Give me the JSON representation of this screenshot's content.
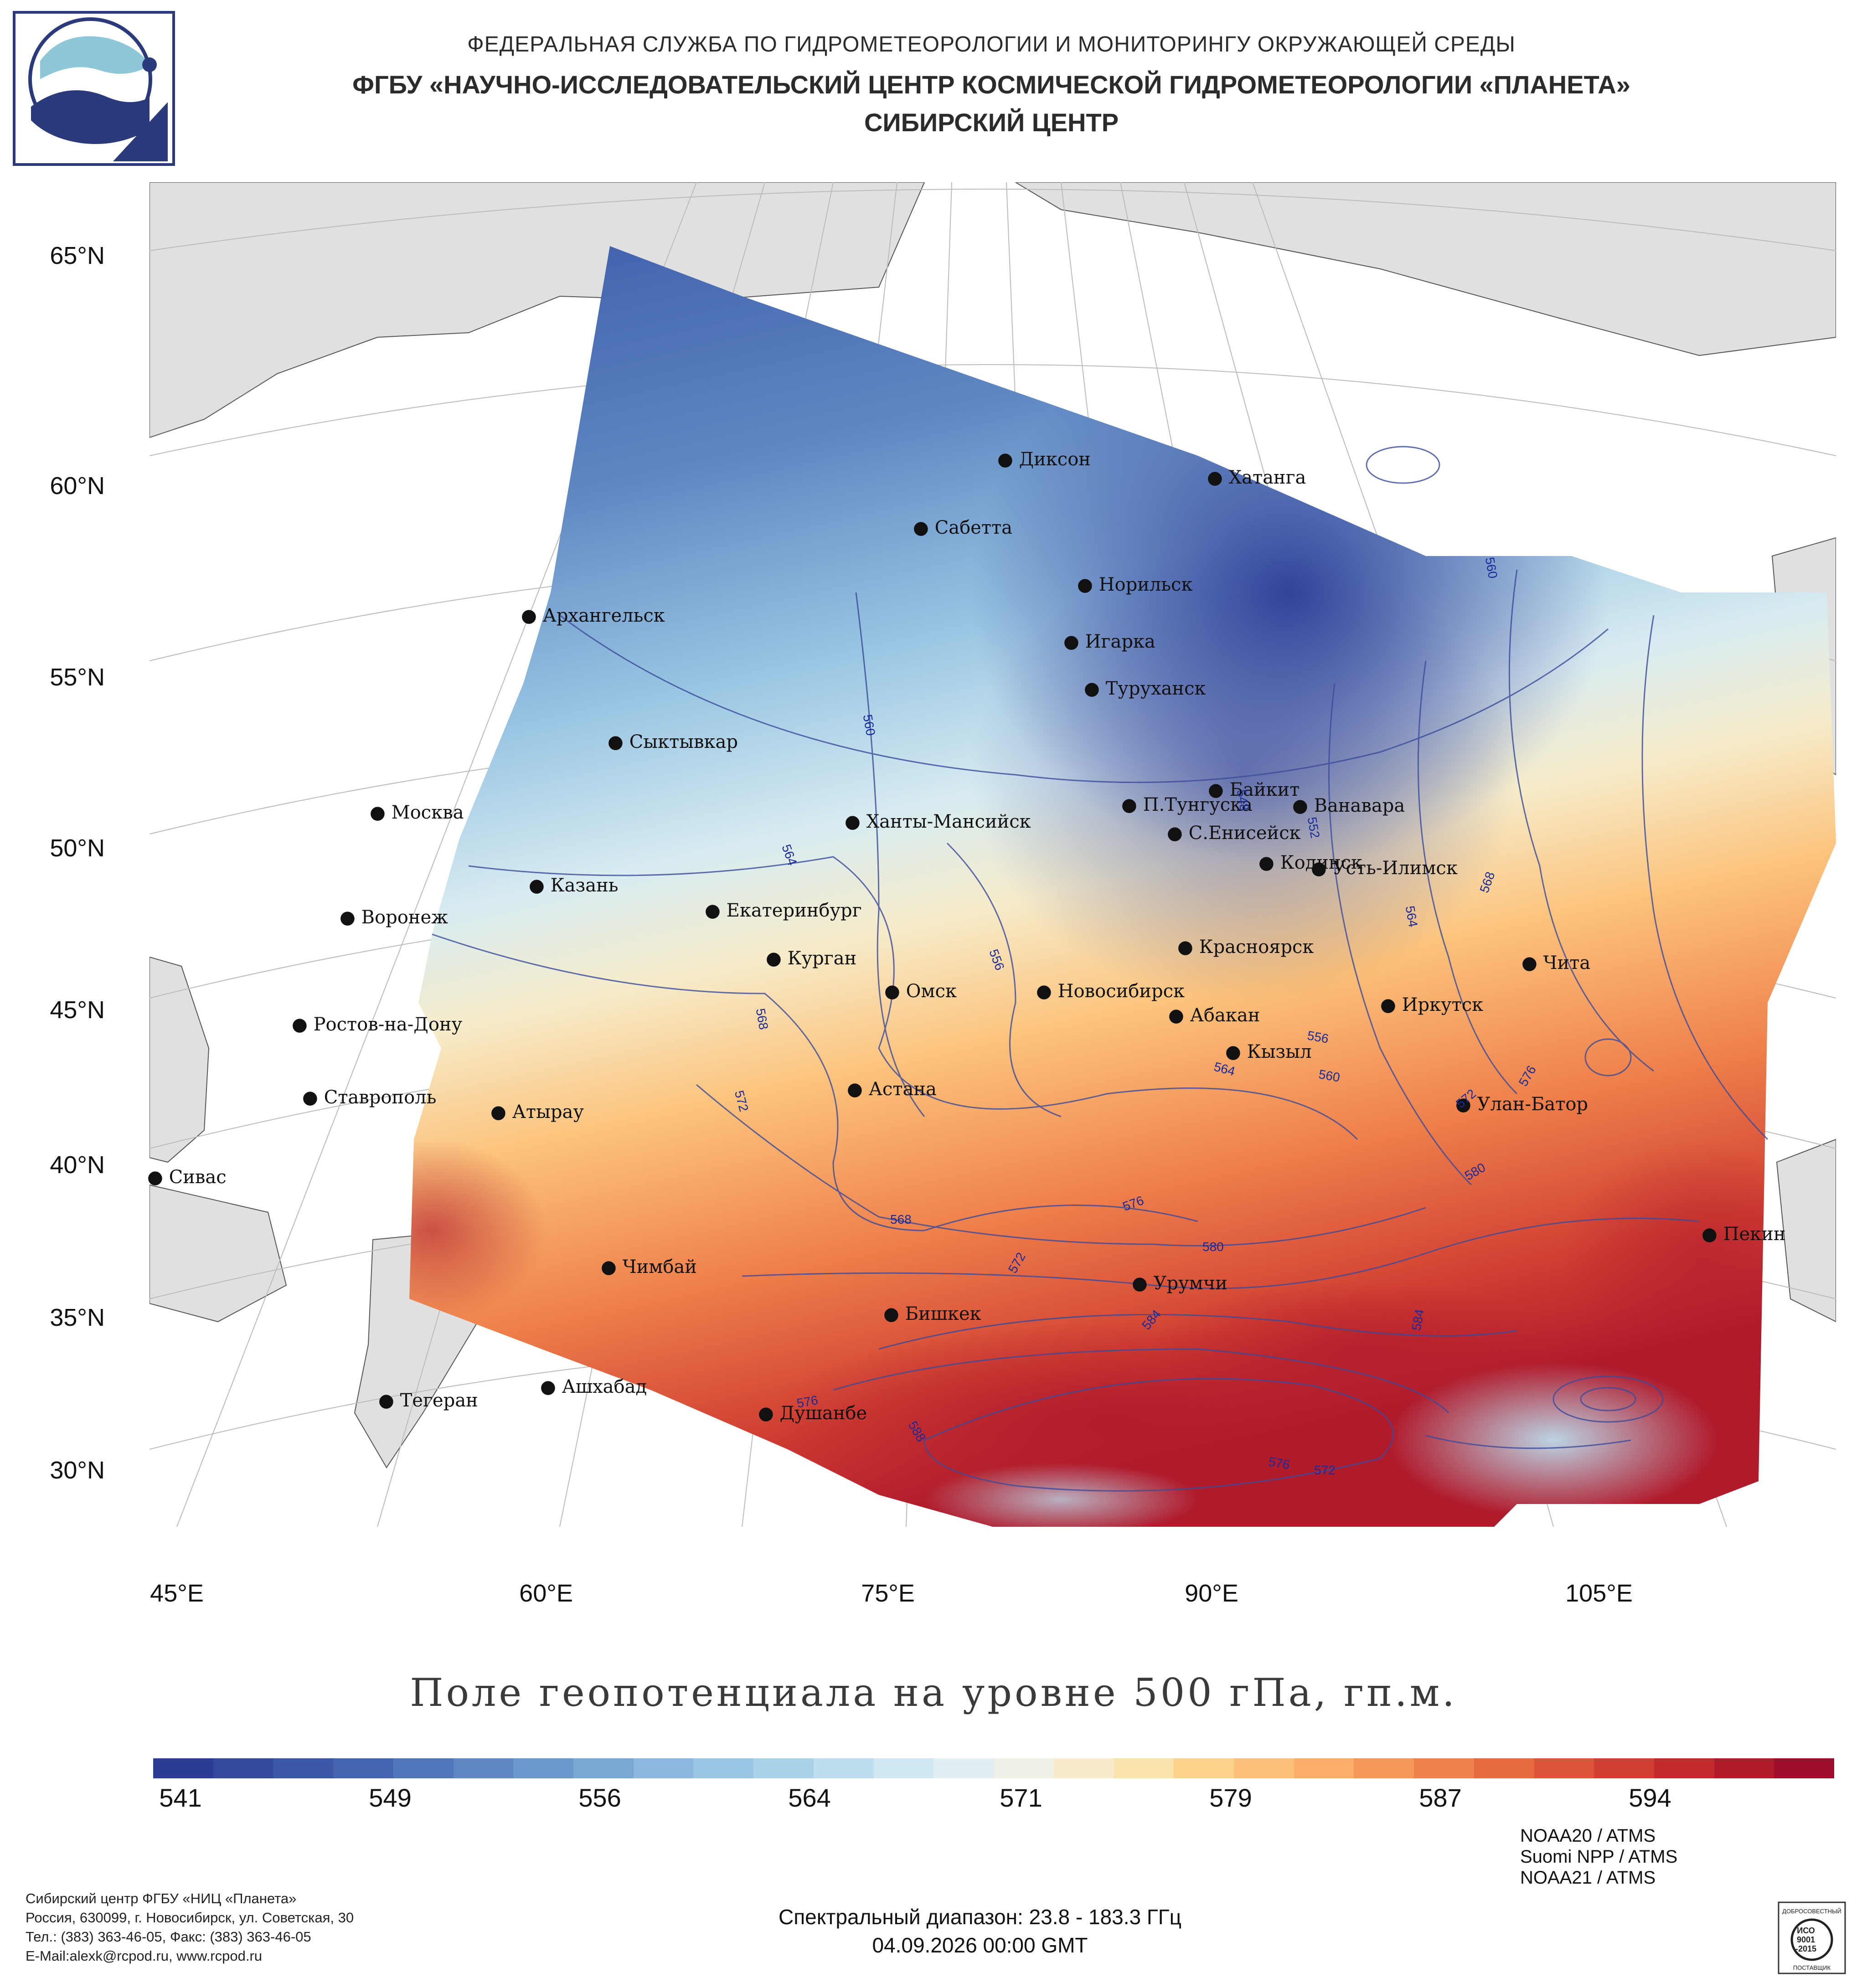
{
  "header": {
    "line1": "ФЕДЕРАЛЬНАЯ СЛУЖБА ПО ГИДРОМЕТЕОРОЛОГИИ И МОНИТОРИНГУ ОКРУЖАЮЩЕЙ СРЕДЫ",
    "line2": "ФГБУ «НАУЧНО-ИССЛЕДОВАТЕЛЬСКИЙ ЦЕНТР КОСМИЧЕСКОЙ ГИДРОМЕТЕОРОЛОГИИ «ПЛАНЕТА»",
    "line3": "СИБИРСКИЙ ЦЕНТР"
  },
  "map": {
    "lat_labels": [
      "65°N",
      "60°N",
      "55°N",
      "50°N",
      "45°N",
      "40°N",
      "35°N",
      "30°N"
    ],
    "lon_labels": [
      "45°E",
      "60°E",
      "75°E",
      "90°E",
      "105°E"
    ],
    "cities": [
      {
        "name": "Диксон"
      },
      {
        "name": "Хатанга"
      },
      {
        "name": "Сабетта"
      },
      {
        "name": "Норильск"
      },
      {
        "name": "Архангельск"
      },
      {
        "name": "Игарка"
      },
      {
        "name": "Туруханск"
      },
      {
        "name": "Сыктывкар"
      },
      {
        "name": "Байкит"
      },
      {
        "name": "П.Тунгуска"
      },
      {
        "name": "Ванавара"
      },
      {
        "name": "Москва"
      },
      {
        "name": "Ханты-Мансийск"
      },
      {
        "name": "С.Енисейск"
      },
      {
        "name": "Кодинск"
      },
      {
        "name": "Усть-Илимск"
      },
      {
        "name": "Казань"
      },
      {
        "name": "Екатеринбург"
      },
      {
        "name": "Воронеж"
      },
      {
        "name": "Красноярск"
      },
      {
        "name": "Курган"
      },
      {
        "name": "Чита"
      },
      {
        "name": "Омск"
      },
      {
        "name": "Новосибирск"
      },
      {
        "name": "Иркутск"
      },
      {
        "name": "Абакан"
      },
      {
        "name": "Ростов-на-Дону"
      },
      {
        "name": "Кызыл"
      },
      {
        "name": "Астана"
      },
      {
        "name": "Ставрополь"
      },
      {
        "name": "Улан-Батор"
      },
      {
        "name": "Атырау"
      },
      {
        "name": "Сивас"
      },
      {
        "name": "Пекин"
      },
      {
        "name": "Чимбай"
      },
      {
        "name": "Урумчи"
      },
      {
        "name": "Бишкек"
      },
      {
        "name": "Ашхабад"
      },
      {
        "name": "Тегеран"
      },
      {
        "name": "Душанбе"
      }
    ],
    "contour_labels": [
      "560",
      "560",
      "564",
      "556",
      "568",
      "572",
      "568",
      "572",
      "576",
      "580",
      "584",
      "588",
      "576",
      "576",
      "572",
      "584",
      "580",
      "576",
      "572",
      "556",
      "564",
      "560",
      "548",
      "552",
      "564",
      "568"
    ]
  },
  "title": "Поле геопотенциала на уровне 500 гПа, гп.м.",
  "colorbar": {
    "tick_labels": [
      "541",
      "549",
      "556",
      "564",
      "571",
      "579",
      "587",
      "594"
    ],
    "colors": [
      "#2c3c96",
      "#34489e",
      "#3c56a8",
      "#4565b1",
      "#5176b9",
      "#5f87c2",
      "#6d98cb",
      "#7ba8d3",
      "#8bb8dc",
      "#9ac6e3",
      "#aad3ea",
      "#bcdeee",
      "#cfe8f1",
      "#e1eff2",
      "#eef0e6",
      "#f6eccb",
      "#fbe3ac",
      "#fcd38d",
      "#fcc27a",
      "#faae68",
      "#f69859",
      "#ef824c",
      "#e66b41",
      "#dc5538",
      "#d03f32",
      "#c22a2e",
      "#b01b2c",
      "#9c0e2a"
    ]
  },
  "footer": {
    "org_line1": "Сибирский центр ФГБУ «НИЦ «Планета»",
    "org_line2": "Россия, 630099, г. Новосибирск, ул. Советская, 30",
    "org_line3": "Тел.: (383) 363-46-05, Факс: (383) 363-46-05",
    "org_line4": "E-Mail:alexk@rcpod.ru, www.rcpod.ru",
    "spectral": "Спектральный диапазон: 23.8 - 183.3 ГГц",
    "datetime": "04.09.2026 00:00 GMT",
    "sat1": "NOAA20 / ATMS",
    "sat2": "Suomi NPP / ATMS",
    "sat3": "NOAA21 / ATMS",
    "iso_top": "ДОБРОСОВЕСТНЫЙ",
    "iso_mid1": "ИСО",
    "iso_mid2": "9001",
    "iso_mid3": "-2015",
    "iso_bottom": "ПОСТАВЩИК"
  }
}
